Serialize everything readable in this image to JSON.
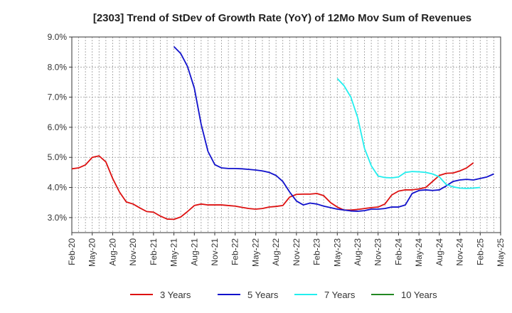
{
  "chart_data": {
    "type": "line",
    "title": "[2303]  Trend of StDev of Growth Rate (YoY) of 12Mo Mov Sum of Revenues",
    "xlabel": "",
    "ylabel": "",
    "y_ticks": [
      "3.0%",
      "4.0%",
      "5.0%",
      "6.0%",
      "7.0%",
      "8.0%",
      "9.0%"
    ],
    "y_tick_values": [
      3.0,
      4.0,
      5.0,
      6.0,
      7.0,
      8.0,
      9.0
    ],
    "ylim": [
      2.5,
      9.0
    ],
    "x_ticks": [
      "Feb-20",
      "May-20",
      "Aug-20",
      "Nov-20",
      "Feb-21",
      "May-21",
      "Aug-21",
      "Nov-21",
      "Feb-22",
      "May-22",
      "Aug-22",
      "Nov-22",
      "Feb-23",
      "May-23",
      "Aug-23",
      "Nov-23",
      "Feb-24",
      "May-24",
      "Aug-24",
      "Nov-24",
      "Feb-25",
      "May-25"
    ],
    "x_start": "Feb-20",
    "months_total": 63,
    "grid": true,
    "legend_position": "bottom",
    "series": [
      {
        "name": "3 Years",
        "color": "#dd1111",
        "start_month": 0,
        "values": [
          4.62,
          4.65,
          4.75,
          5.0,
          5.05,
          4.85,
          4.3,
          3.85,
          3.52,
          3.45,
          3.32,
          3.2,
          3.18,
          3.05,
          2.95,
          2.94,
          3.02,
          3.2,
          3.4,
          3.45,
          3.42,
          3.42,
          3.42,
          3.4,
          3.38,
          3.34,
          3.3,
          3.28,
          3.3,
          3.35,
          3.37,
          3.4,
          3.68,
          3.77,
          3.78,
          3.78,
          3.8,
          3.73,
          3.5,
          3.35,
          3.25,
          3.25,
          3.27,
          3.3,
          3.33,
          3.35,
          3.45,
          3.75,
          3.88,
          3.92,
          3.92,
          3.95,
          4.0,
          4.2,
          4.4,
          4.47,
          4.48,
          4.55,
          4.65,
          4.82
        ]
      },
      {
        "name": "5 Years",
        "color": "#1111cc",
        "start_month": 15,
        "values": [
          8.68,
          8.45,
          8.02,
          7.3,
          6.1,
          5.2,
          4.76,
          4.65,
          4.63,
          4.63,
          4.62,
          4.6,
          4.58,
          4.55,
          4.5,
          4.4,
          4.2,
          3.85,
          3.55,
          3.42,
          3.48,
          3.45,
          3.38,
          3.33,
          3.28,
          3.25,
          3.22,
          3.21,
          3.23,
          3.28,
          3.28,
          3.3,
          3.35,
          3.35,
          3.42,
          3.8,
          3.9,
          3.92,
          3.9,
          3.92,
          4.05,
          4.2,
          4.25,
          4.27,
          4.25,
          4.3,
          4.35,
          4.45
        ]
      },
      {
        "name": "7 Years",
        "color": "#22eeee",
        "start_month": 39,
        "values": [
          7.62,
          7.38,
          7.0,
          6.32,
          5.3,
          4.72,
          4.38,
          4.33,
          4.32,
          4.35,
          4.5,
          4.53,
          4.52,
          4.5,
          4.45,
          4.35,
          4.1,
          4.02,
          3.98,
          3.97,
          3.98,
          4.0
        ]
      },
      {
        "name": "10 Years",
        "color": "#228822",
        "start_month": 0,
        "values": []
      }
    ]
  }
}
